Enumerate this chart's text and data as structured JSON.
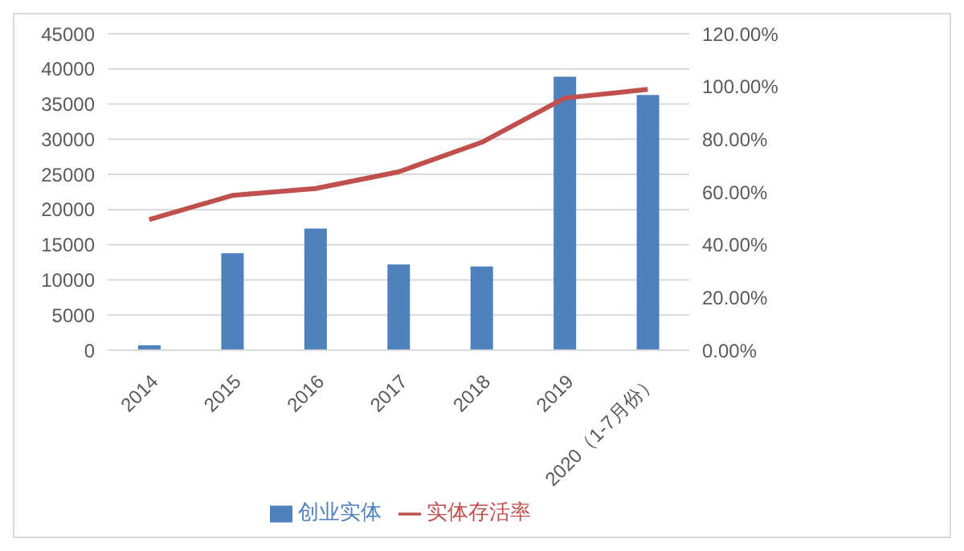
{
  "chart_data": {
    "type": "bar",
    "categories": [
      "2014",
      "2015",
      "2016",
      "2017",
      "2018",
      "2019",
      "2020（1-7月份）"
    ],
    "series": [
      {
        "name": "创业实体",
        "color": "#4f81bd",
        "values": [
          700,
          13800,
          17300,
          12200,
          11900,
          38900,
          36300
        ]
      },
      {
        "name": "实体存活率",
        "type": "line",
        "axis": "y2",
        "color": "#c0504d",
        "values": [
          49.5,
          58.7,
          61.3,
          67.6,
          78.8,
          95.6,
          98.9
        ]
      }
    ],
    "ylim": [
      0,
      45000
    ],
    "yticks": [
      0,
      5000,
      10000,
      15000,
      20000,
      25000,
      30000,
      35000,
      40000,
      45000
    ],
    "y2lim": [
      0,
      120
    ],
    "y2ticks": [
      {
        "value": 0,
        "label": "0.00%"
      },
      {
        "value": 20,
        "label": "20.00%"
      },
      {
        "value": 40,
        "label": "40.00%"
      },
      {
        "value": 60,
        "label": "60.00%"
      },
      {
        "value": 80,
        "label": "80.00%"
      },
      {
        "value": 100,
        "label": "100.00%"
      },
      {
        "value": 120,
        "label": "120.00%"
      }
    ],
    "grid": "y",
    "legend": "bottom",
    "marker": "none",
    "line_style": "solid"
  }
}
